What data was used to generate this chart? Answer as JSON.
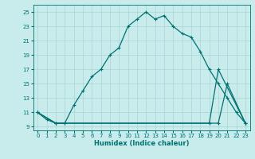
{
  "xlabel": "Humidex (Indice chaleur)",
  "bg_color": "#c8ecec",
  "grid_color": "#b0d8d8",
  "line_color": "#007070",
  "xlim": [
    -0.5,
    23.5
  ],
  "ylim": [
    8.5,
    26
  ],
  "xticks": [
    0,
    1,
    2,
    3,
    4,
    5,
    6,
    7,
    8,
    9,
    10,
    11,
    12,
    13,
    14,
    15,
    16,
    17,
    18,
    19,
    20,
    21,
    22,
    23
  ],
  "yticks": [
    9,
    11,
    13,
    15,
    17,
    19,
    21,
    23,
    25
  ],
  "line1_x": [
    0,
    1,
    2,
    3,
    4,
    5,
    6,
    7,
    8,
    9,
    10,
    11,
    12,
    13,
    14,
    15,
    16,
    17,
    18,
    19,
    20,
    21,
    22,
    23
  ],
  "line1_y": [
    11,
    10,
    9.5,
    9.5,
    12,
    14,
    16,
    17,
    19,
    20,
    23,
    24,
    25,
    24,
    24.5,
    23,
    22,
    21.5,
    19.5,
    17,
    15,
    13,
    11,
    9.5
  ],
  "line2_x": [
    0,
    2,
    19,
    20,
    23
  ],
  "line2_y": [
    11,
    9.5,
    9.5,
    17,
    9.5
  ],
  "line3_x": [
    0,
    2,
    20,
    21,
    23
  ],
  "line3_y": [
    11,
    9.5,
    9.5,
    15,
    9.5
  ],
  "marker": "+",
  "markersize": 3.5,
  "linewidth": 0.9,
  "tick_fontsize": 5.0,
  "xlabel_fontsize": 6.0
}
